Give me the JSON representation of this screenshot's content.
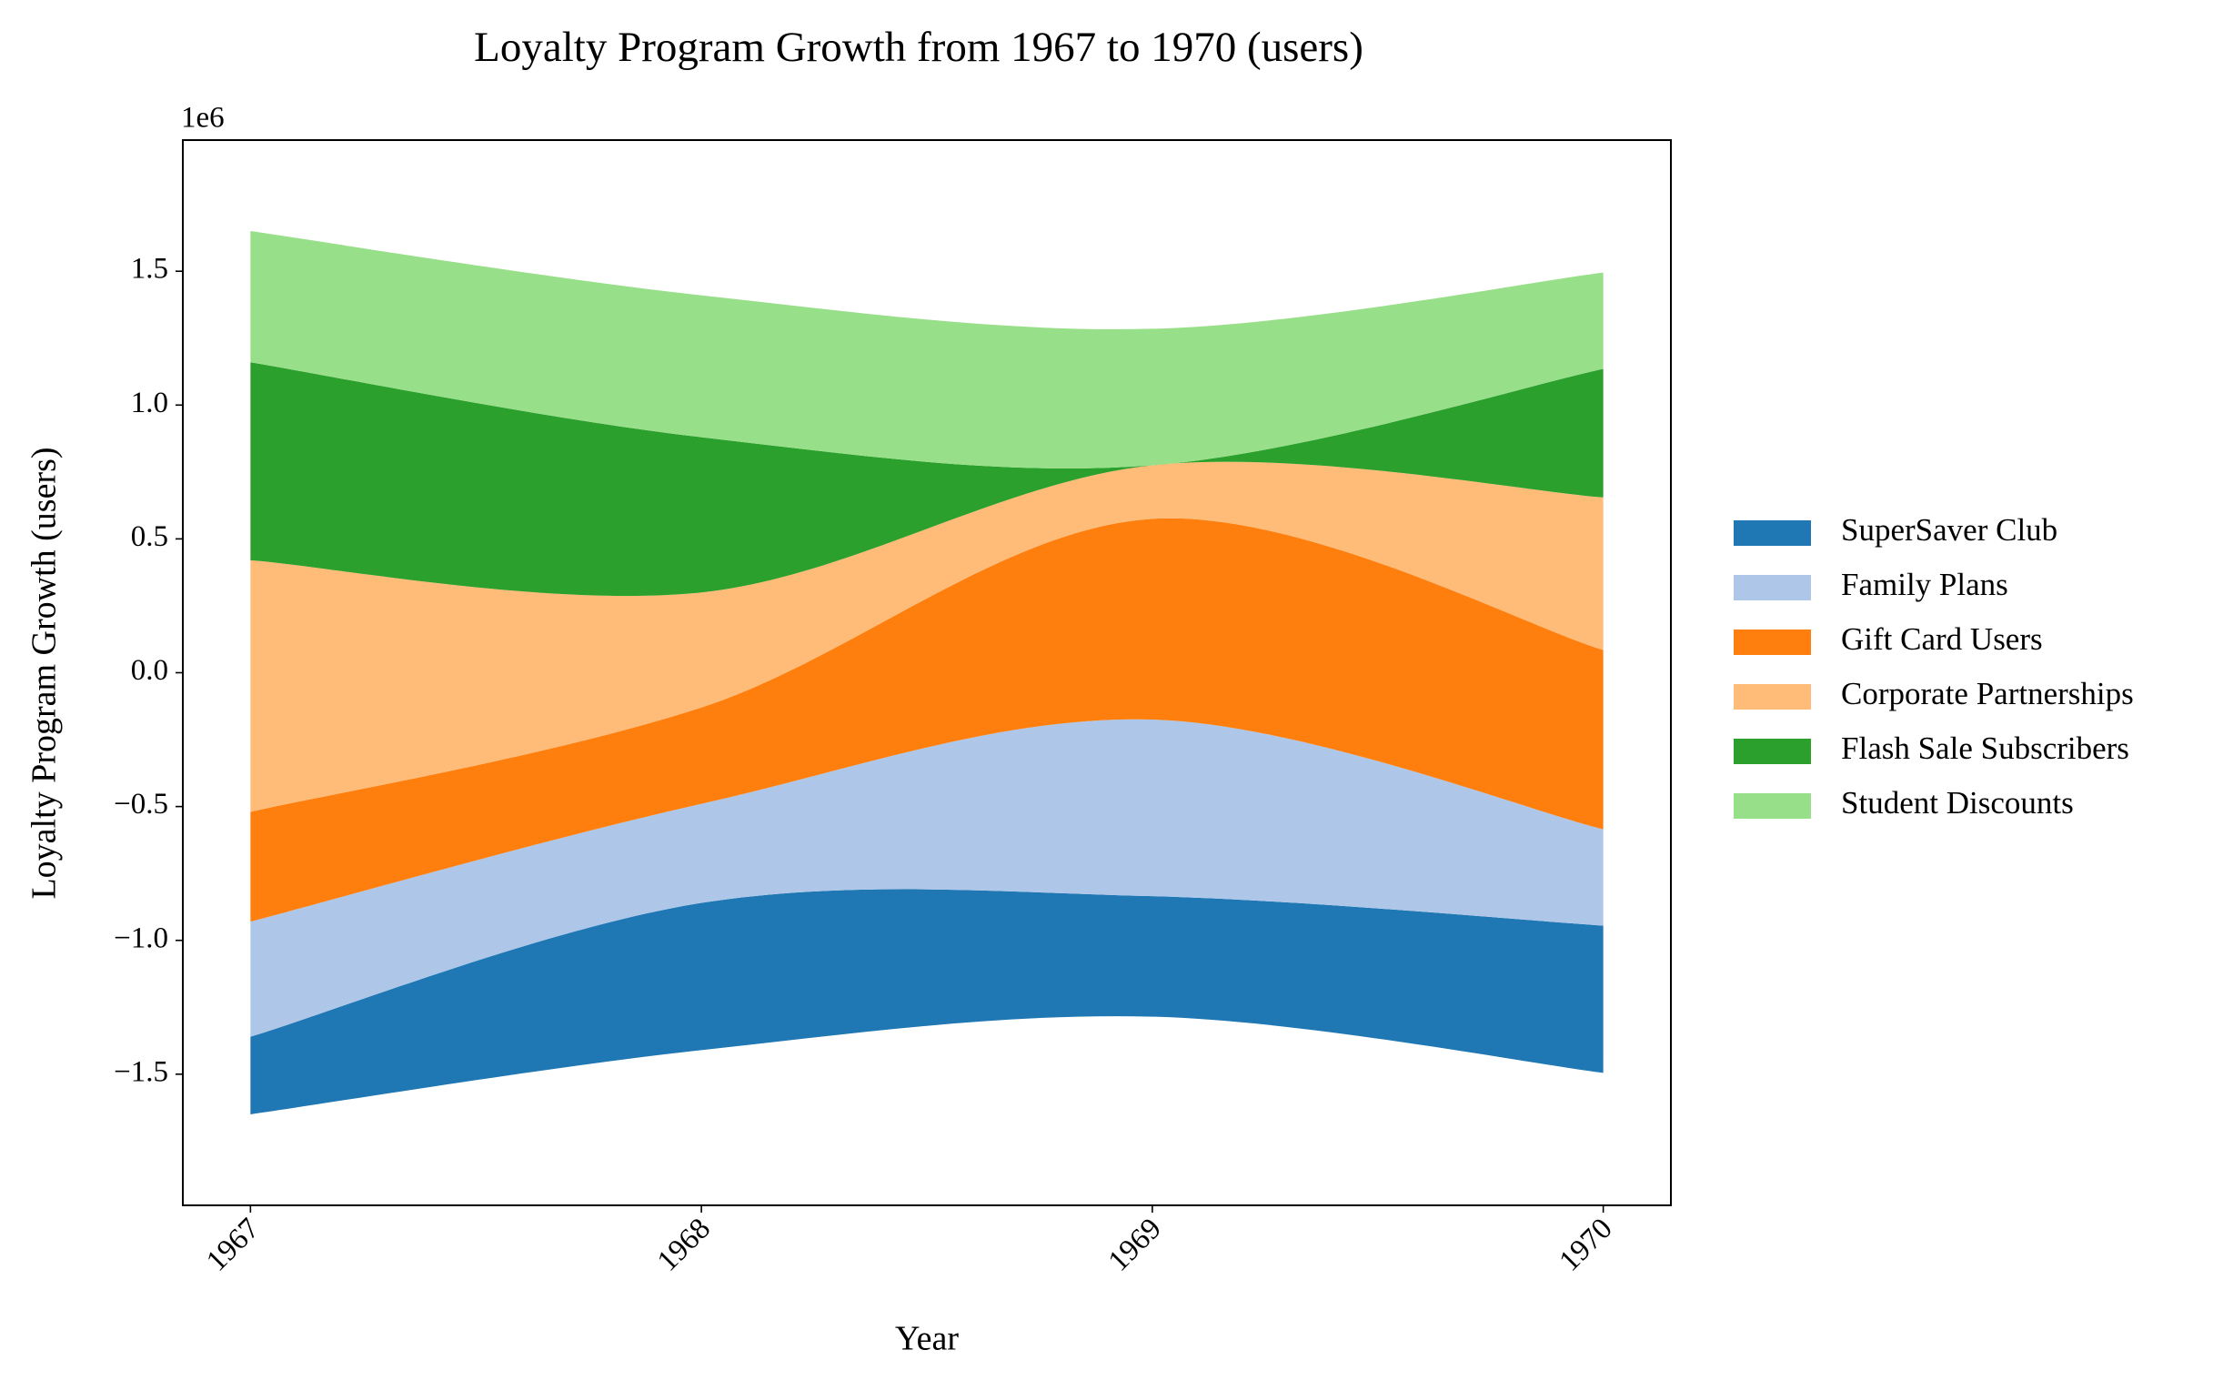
{
  "chart_data": {
    "type": "streamgraph",
    "title": "Loyalty Program Growth from 1967 to 1970 (users)",
    "x_label": "Year",
    "y_label": "Loyalty Program Growth (users)",
    "y_offset_label": "1e6",
    "x": [
      1967,
      1968,
      1969,
      1970
    ],
    "xlim": [
      1966.85,
      1970.15
    ],
    "xticks": [
      1967,
      1968,
      1969,
      1970
    ],
    "ylim": [
      -1990000,
      1990000
    ],
    "yticks": [
      {
        "value": -1500000,
        "label": "−1.5"
      },
      {
        "value": -1000000,
        "label": "−1.0"
      },
      {
        "value": -500000,
        "label": "−0.5"
      },
      {
        "value": 0,
        "label": "0.0"
      },
      {
        "value": 500000,
        "label": "0.5"
      },
      {
        "value": 1000000,
        "label": "1.0"
      },
      {
        "value": 1500000,
        "label": "1.5"
      }
    ],
    "baseline": "sym",
    "legend": "right",
    "series": [
      {
        "name": "SuperSaver Club",
        "color": "#1f77b4",
        "values": [
          290000,
          550000,
          450000,
          550000
        ]
      },
      {
        "name": "Family Plans",
        "color": "#aec7e8",
        "values": [
          430000,
          370000,
          660000,
          360000
        ]
      },
      {
        "name": "Gift Card Users",
        "color": "#ff7f0e",
        "values": [
          410000,
          360000,
          750000,
          670000
        ]
      },
      {
        "name": "Corporate Partnerships",
        "color": "#ffbb78",
        "values": [
          940000,
          430000,
          200000,
          570000
        ]
      },
      {
        "name": "Flash Sale Subscribers",
        "color": "#2ca02c",
        "values": [
          740000,
          580000,
          0,
          480000
        ]
      },
      {
        "name": "Student Discounts",
        "color": "#98df8a",
        "values": [
          490000,
          530000,
          510000,
          360000
        ]
      }
    ]
  }
}
